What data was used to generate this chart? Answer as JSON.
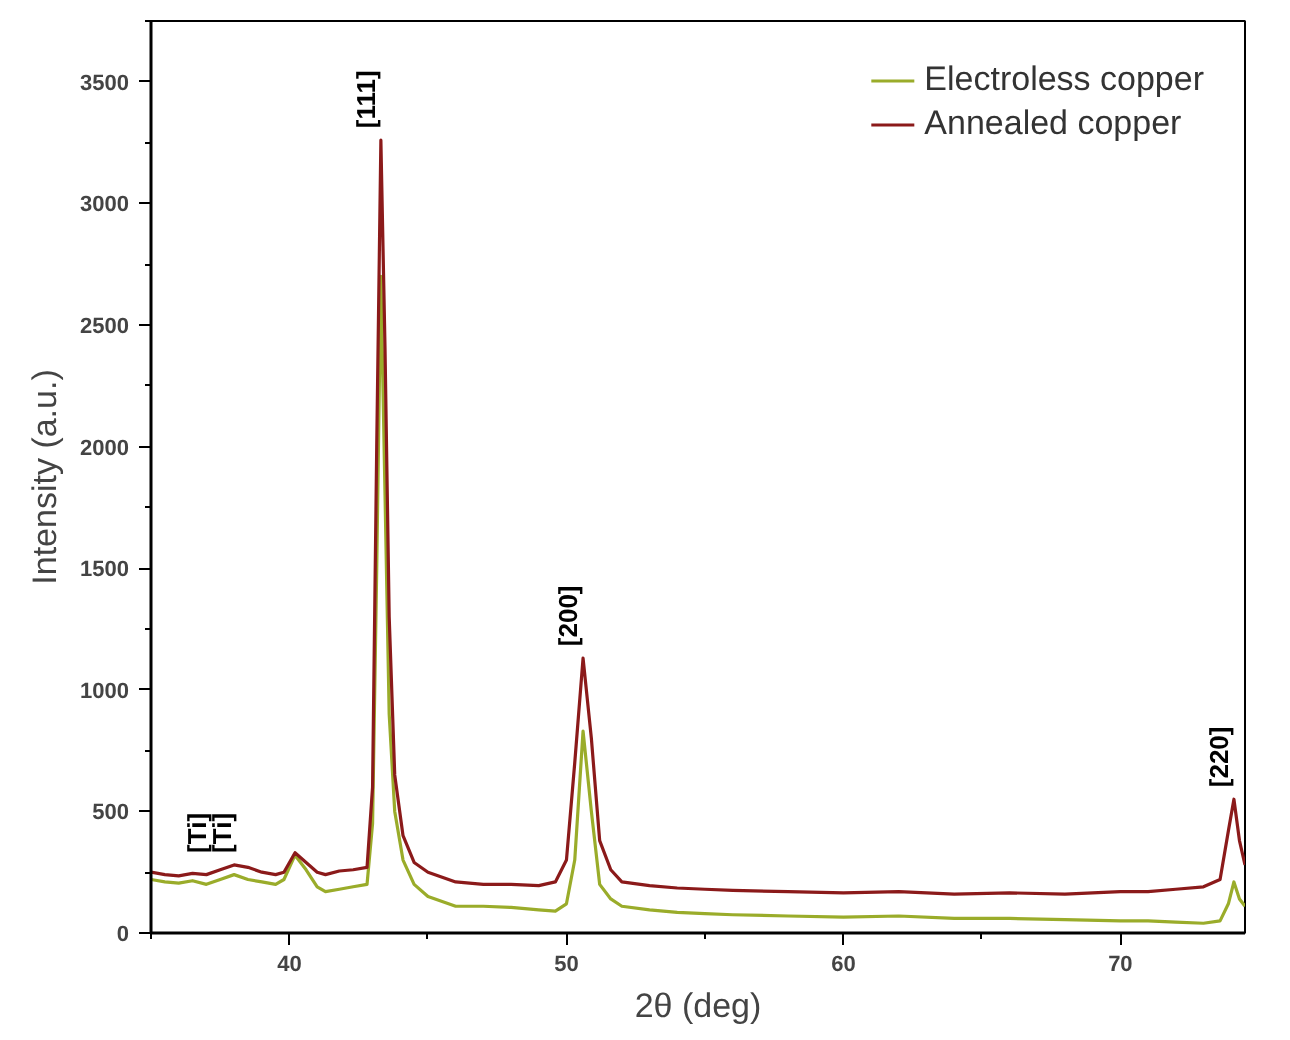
{
  "chart_data": {
    "type": "line",
    "xlabel": "2θ (deg)",
    "ylabel": "Intensity (a.u.)",
    "xlim": [
      35,
      74.5
    ],
    "ylim": [
      0,
      3750
    ],
    "xticks": [
      40,
      50,
      60,
      70
    ],
    "yticks": [
      0,
      500,
      1000,
      1500,
      2000,
      2500,
      3000,
      3500
    ],
    "grid": false,
    "legend": "top right",
    "line_style": "solid",
    "marker": "none",
    "series": [
      {
        "name": "Electroless copper",
        "color": "#9aac2a",
        "x": [
          35,
          35.5,
          36,
          36.5,
          37,
          37.5,
          38,
          38.5,
          39,
          39.5,
          39.8,
          40.2,
          40.6,
          41,
          41.3,
          41.8,
          42.3,
          42.8,
          43.0,
          43.15,
          43.3,
          43.45,
          43.6,
          43.8,
          44.1,
          44.5,
          45,
          46,
          47,
          48,
          49,
          49.6,
          50.0,
          50.3,
          50.6,
          50.9,
          51.2,
          51.6,
          52,
          53,
          54,
          55,
          56,
          58,
          60,
          62,
          64,
          66,
          68,
          70,
          71,
          72,
          73,
          73.6,
          73.9,
          74.1,
          74.3,
          74.5
        ],
        "values": [
          220,
          210,
          205,
          215,
          200,
          220,
          240,
          220,
          210,
          200,
          220,
          320,
          260,
          190,
          170,
          180,
          190,
          200,
          450,
          1500,
          2700,
          1800,
          900,
          500,
          300,
          200,
          150,
          110,
          110,
          105,
          95,
          90,
          120,
          300,
          830,
          500,
          200,
          140,
          110,
          95,
          85,
          80,
          75,
          70,
          65,
          70,
          60,
          60,
          55,
          50,
          50,
          45,
          40,
          50,
          120,
          210,
          140,
          110
        ]
      },
      {
        "name": "Annealed copper",
        "color": "#8b1a1a",
        "x": [
          35,
          35.5,
          36,
          36.5,
          37,
          37.5,
          38,
          38.5,
          39,
          39.5,
          39.8,
          40.2,
          40.6,
          41,
          41.3,
          41.8,
          42.3,
          42.8,
          43.0,
          43.15,
          43.3,
          43.45,
          43.6,
          43.8,
          44.1,
          44.5,
          45,
          46,
          47,
          48,
          49,
          49.6,
          50.0,
          50.3,
          50.6,
          50.9,
          51.2,
          51.6,
          52,
          53,
          54,
          55,
          56,
          58,
          60,
          62,
          64,
          66,
          68,
          70,
          71,
          72,
          73,
          73.6,
          73.9,
          74.1,
          74.3,
          74.5
        ],
        "values": [
          250,
          240,
          235,
          245,
          240,
          260,
          280,
          270,
          250,
          240,
          250,
          330,
          290,
          250,
          240,
          255,
          260,
          270,
          600,
          2000,
          3260,
          2400,
          1300,
          650,
          400,
          290,
          250,
          210,
          200,
          200,
          195,
          210,
          300,
          700,
          1130,
          800,
          380,
          260,
          210,
          195,
          185,
          180,
          175,
          170,
          165,
          170,
          160,
          165,
          160,
          170,
          170,
          180,
          190,
          220,
          420,
          550,
          380,
          280
        ]
      }
    ],
    "annotations": [
      {
        "text": "[Ti]",
        "x": 37.2,
        "y": 280
      },
      {
        "text": "[Ti]",
        "x": 38.1,
        "y": 280
      },
      {
        "text": "[111]",
        "x": 43.3,
        "y": 3260
      },
      {
        "text": "[200]",
        "x": 50.6,
        "y": 1130
      },
      {
        "text": "[220]",
        "x": 74.1,
        "y": 550
      }
    ]
  }
}
